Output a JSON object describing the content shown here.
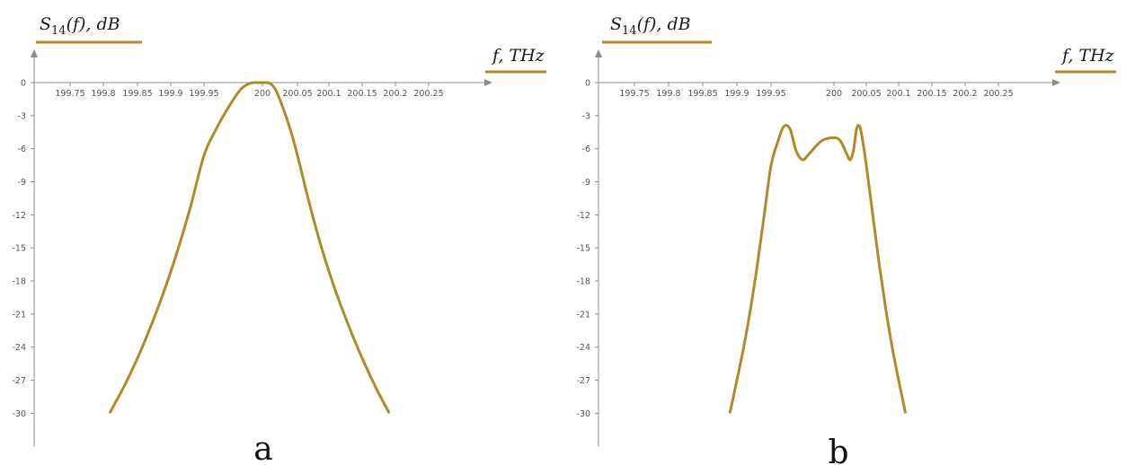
{
  "chart_data": [
    {
      "type": "line",
      "panel_label": "a",
      "title": "",
      "ylabel": {
        "main": "S",
        "sub": "14",
        "rest": "(f), dB"
      },
      "xlabel": "f, THz",
      "x_ticks": [
        199.75,
        199.8,
        199.85,
        199.9,
        199.95,
        200,
        200.05,
        200.1,
        200.15,
        200.2,
        200.25
      ],
      "x_tick_labels": [
        "199.75",
        "199.8",
        "199.85",
        "199.9",
        "199.95",
        "200",
        "200.05",
        "200.1",
        "200.15",
        "200.2",
        "200.25"
      ],
      "y_ticks": [
        0,
        -3,
        -6,
        -9,
        -12,
        -15,
        -18,
        -21,
        -24,
        -27,
        -30
      ],
      "y_tick_labels": [
        "0",
        "-3",
        "-6",
        "-9",
        "-12",
        "-15",
        "-18",
        "-21",
        "-24",
        "-27",
        "-30"
      ],
      "xlim": [
        199.7,
        200.3
      ],
      "ylim": [
        -33,
        3.5
      ],
      "grid": false,
      "series": [
        {
          "x": [
            199.81,
            199.83,
            199.85,
            199.87,
            199.89,
            199.91,
            199.93,
            199.95,
            199.96,
            199.97,
            199.98,
            199.985,
            199.99,
            199.995,
            200.0,
            200.005,
            200.01,
            200.015,
            200.02,
            200.03,
            200.04,
            200.05,
            200.07,
            200.09,
            200.11,
            200.13,
            200.15,
            200.17,
            200.19
          ],
          "y": [
            -29.9,
            -27.6,
            -25.0,
            -22.1,
            -18.9,
            -15.3,
            -11.2,
            -6.6,
            -4.3,
            -2.4,
            -0.8,
            -0.3,
            -0.05,
            0.0,
            0.0,
            0.0,
            -0.05,
            -0.3,
            -0.8,
            -2.4,
            -4.3,
            -6.6,
            -11.2,
            -15.3,
            -18.9,
            -22.1,
            -25.0,
            -27.6,
            -29.9
          ]
        }
      ],
      "colors": {
        "series": "#b08a2a",
        "axis": "#8c8c8c",
        "underline": "#b08a2a"
      }
    },
    {
      "type": "line",
      "panel_label": "b",
      "title": "",
      "ylabel": {
        "main": "S",
        "sub": "14",
        "rest": "(f), dB"
      },
      "xlabel": "f, THz",
      "x_ticks": [
        199.75,
        199.8,
        199.85,
        199.9,
        199.95,
        200,
        200.05,
        200.1,
        200.15,
        200.2,
        200.25
      ],
      "x_tick_labels": [
        "199.75",
        "199.8",
        "199.85",
        "199.9",
        "199.95",
        "200",
        "200.05",
        "200.1",
        "200.15",
        "200.2",
        "200.25"
      ],
      "y_ticks": [
        0,
        -3,
        -6,
        -9,
        -12,
        -15,
        -18,
        -21,
        -24,
        -27,
        -30
      ],
      "y_tick_labels": [
        "0",
        "-3",
        "-6",
        "-9",
        "-12",
        "-15",
        "-18",
        "-21",
        "-24",
        "-27",
        "-30"
      ],
      "xlim": [
        199.7,
        200.3
      ],
      "ylim": [
        -33,
        3.5
      ],
      "grid": false,
      "series": [
        {
          "x": [
            199.89,
            199.9,
            199.91,
            199.92,
            199.93,
            199.94,
            199.95,
            199.955,
            199.96,
            199.965,
            199.97,
            199.975,
            199.98,
            199.99,
            200.0,
            200.01,
            200.02,
            200.025,
            200.03,
            200.035,
            200.04,
            200.045,
            200.05,
            200.06,
            200.07,
            200.08,
            200.09,
            200.1,
            200.11
          ],
          "y": [
            -29.9,
            -27.0,
            -24.0,
            -20.5,
            -16.5,
            -12.0,
            -7.5,
            -5.5,
            -4.0,
            -4.2,
            -6.2,
            -7.0,
            -6.5,
            -5.3,
            -5.0,
            -5.3,
            -6.5,
            -7.0,
            -6.2,
            -4.2,
            -4.0,
            -5.5,
            -7.5,
            -12.0,
            -16.5,
            -20.5,
            -24.0,
            -27.0,
            -29.9
          ]
        }
      ],
      "colors": {
        "series": "#b08a2a",
        "axis": "#8c8c8c",
        "underline": "#b08a2a"
      }
    }
  ]
}
